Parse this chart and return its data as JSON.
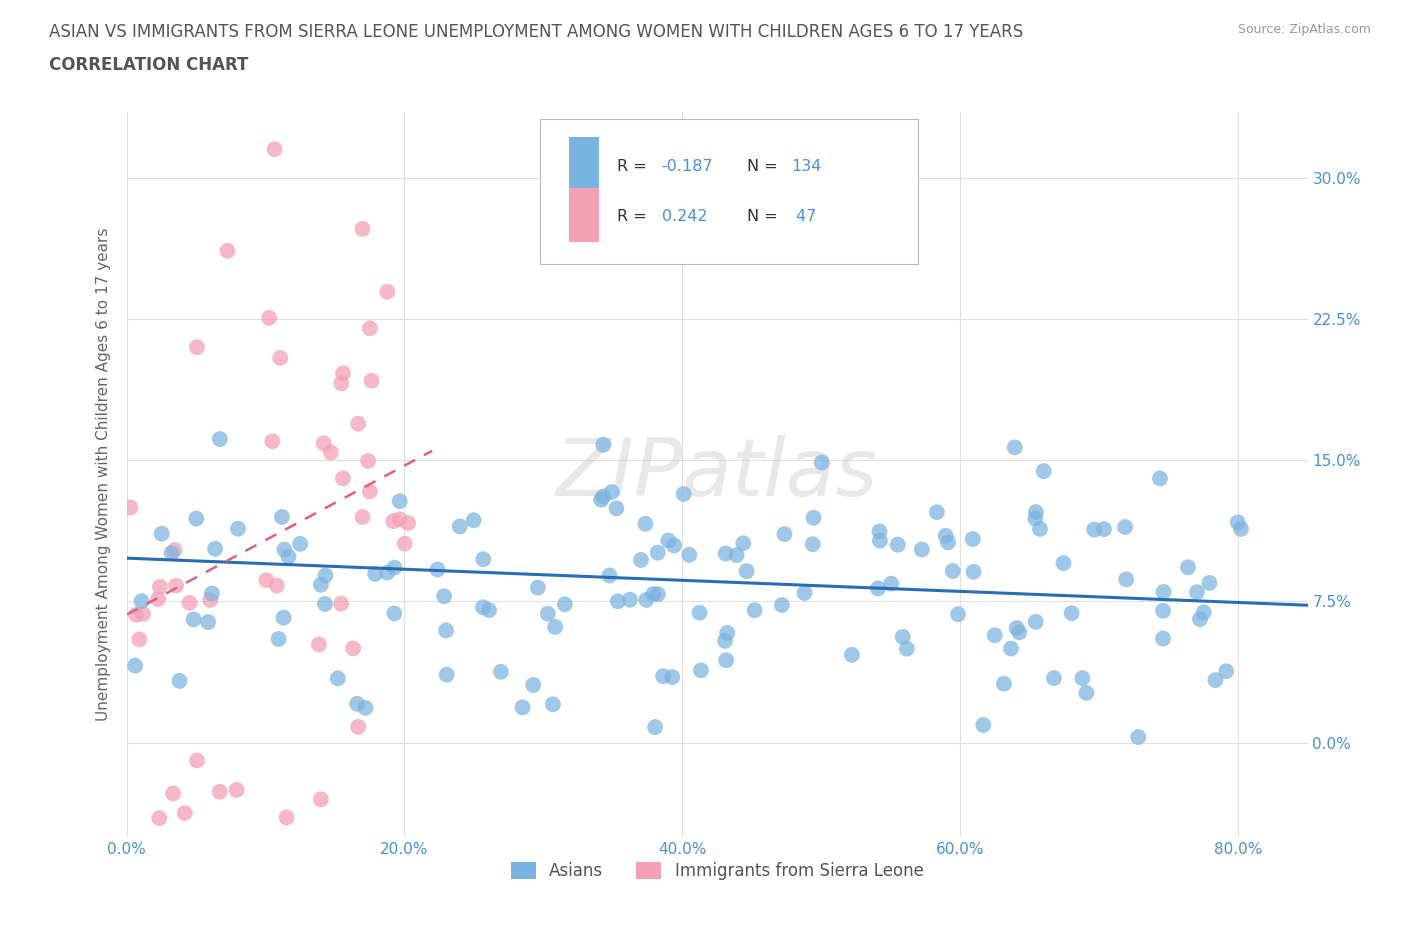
{
  "title_line1": "ASIAN VS IMMIGRANTS FROM SIERRA LEONE UNEMPLOYMENT AMONG WOMEN WITH CHILDREN AGES 6 TO 17 YEARS",
  "title_line2": "CORRELATION CHART",
  "source_text": "Source: ZipAtlas.com",
  "ylabel": "Unemployment Among Women with Children Ages 6 to 17 years",
  "xtick_vals": [
    0.0,
    0.2,
    0.4,
    0.6,
    0.8
  ],
  "xtick_labels": [
    "0.0%",
    "20.0%",
    "40.0%",
    "60.0%",
    "80.0%"
  ],
  "ytick_vals": [
    0.0,
    0.075,
    0.15,
    0.225,
    0.3
  ],
  "ytick_labels": [
    "0.0%",
    "7.5%",
    "15.0%",
    "22.5%",
    "30.0%"
  ],
  "xlim": [
    0.0,
    0.85
  ],
  "ylim": [
    -0.05,
    0.335
  ],
  "asian_color": "#7ab3e0",
  "sierra_leone_color": "#f4a0b5",
  "asian_N": 134,
  "sierra_leone_N": 47,
  "legend_label_asian": "Asians",
  "legend_label_sierra": "Immigrants from Sierra Leone",
  "watermark": "ZIPatlas",
  "asian_line_color": "#2a6db5",
  "sierra_line_color": "#e06080",
  "title_color": "#555555",
  "axis_label_color": "#666666",
  "tick_label_color": "#4a90d9",
  "grid_color": "#e0e0e0",
  "legend_r_color": "#4a90d9",
  "background_color": "#ffffff",
  "asian_line_start_y": 0.098,
  "asian_line_end_y": 0.073,
  "sierra_line_start_x": 0.0,
  "sierra_line_start_y": 0.068,
  "sierra_line_end_x": 0.22,
  "sierra_line_end_y": 0.155
}
